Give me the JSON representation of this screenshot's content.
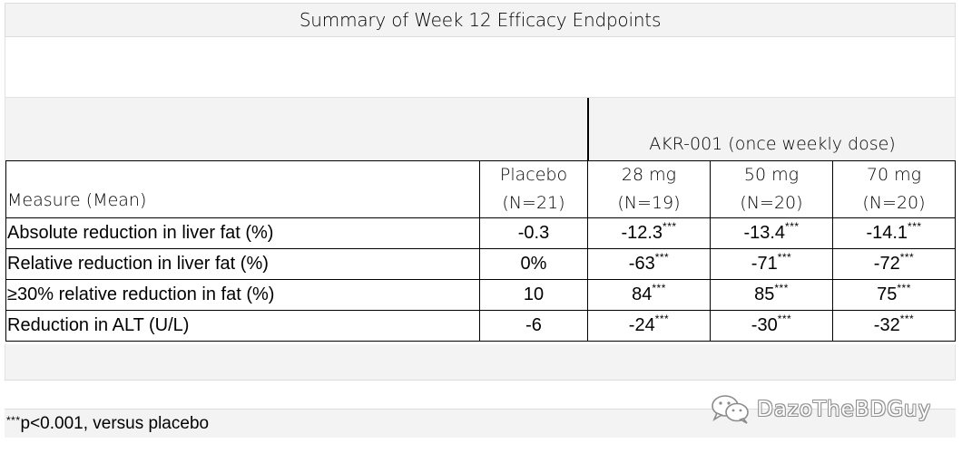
{
  "table_title": "Summary of Week 12 Efficacy Endpoints",
  "group_header": "AKR-001 (once weekly dose)",
  "columns": {
    "measure": "Measure (Mean)",
    "placebo": {
      "label": "Placebo",
      "n": "(N=21)"
    },
    "dose_28": {
      "label": "28 mg",
      "n": "(N=19)"
    },
    "dose_50": {
      "label": "50 mg",
      "n": "(N=20)"
    },
    "dose_70": {
      "label": "70 mg",
      "n": "(N=20)"
    }
  },
  "rows": [
    {
      "measure": "Absolute reduction in liver fat (%)",
      "placebo": "-0.3",
      "dose_28": "-12.3",
      "dose_50": "-13.4",
      "dose_70": "-14.1",
      "sig": "***"
    },
    {
      "measure": "Relative reduction in liver fat (%)",
      "placebo": "0%",
      "dose_28": "-63",
      "dose_50": "-71",
      "dose_70": "-72",
      "sig": "***"
    },
    {
      "measure": "≥30% relative reduction in fat (%)",
      "placebo": "10",
      "dose_28": "84",
      "dose_50": "85",
      "dose_70": "75",
      "sig": "***"
    },
    {
      "measure": "Reduction in ALT (U/L)",
      "placebo": "-6",
      "dose_28": "-24",
      "dose_50": "-30",
      "dose_70": "-32",
      "sig": "***"
    }
  ],
  "footnote": {
    "marker": "***",
    "text": "p<0.001, versus placebo"
  },
  "watermark": {
    "text": "DazoTheBDGuy",
    "icon": "wechat-icon"
  }
}
